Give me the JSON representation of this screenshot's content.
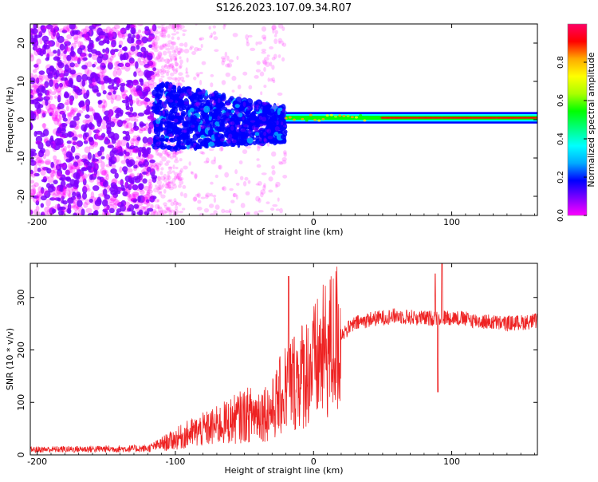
{
  "figure": {
    "title": "S126.2023.107.09.34.R07"
  },
  "chart_data": [
    {
      "type": "heatmap",
      "xlabel": "Height of straight line (km)",
      "ylabel": "Frequency (Hz)",
      "xlim": [
        -205,
        162
      ],
      "ylim": [
        -25,
        25
      ],
      "xticks": [
        -200,
        -100,
        0,
        100
      ],
      "yticks": [
        -20,
        -10,
        0,
        10,
        20
      ],
      "colorbar": {
        "label": "Normalized spectral amplitude",
        "range": [
          0,
          1
        ],
        "ticks": [
          0.0,
          0.2,
          0.4,
          0.6,
          0.8
        ],
        "tick_labels": [
          "0.0",
          "0.2",
          "0.4",
          "0.6",
          "0.8"
        ],
        "colormap": [
          "#ff00ff",
          "#7f00ff",
          "#0000ff",
          "#00aaff",
          "#00ffff",
          "#00ff7f",
          "#00ff00",
          "#aaff00",
          "#ffff00",
          "#ffaa00",
          "#ff0000",
          "#ff0066"
        ]
      },
      "features": [
        {
          "region": "scattered noise",
          "x_range": [
            -205,
            -115
          ],
          "freq_range": [
            -25,
            25
          ],
          "amplitude": 0.1
        },
        {
          "region": "noisy band",
          "x_range": [
            -115,
            -20
          ],
          "freq_range": [
            -8,
            10
          ],
          "amplitude": 0.15
        },
        {
          "region": "narrow band",
          "x_range": [
            -20,
            162
          ],
          "freq_center": 0.5,
          "freq_halfwidth": 1.5,
          "amplitude": 0.9
        }
      ],
      "grid": false
    },
    {
      "type": "line",
      "xlabel": "Height of straight line (km)",
      "ylabel": "SNR (10 * v/v)",
      "xlim": [
        -205,
        162
      ],
      "ylim": [
        0,
        365
      ],
      "xticks": [
        -200,
        -100,
        0,
        100
      ],
      "yticks": [
        0,
        100,
        200,
        300
      ],
      "color": "#ee2222",
      "grid": false,
      "envelope": [
        {
          "x": -205,
          "y": 10
        },
        {
          "x": -120,
          "y": 12
        },
        {
          "x": -105,
          "y": 25
        },
        {
          "x": -90,
          "y": 40
        },
        {
          "x": -70,
          "y": 55
        },
        {
          "x": -50,
          "y": 75
        },
        {
          "x": -30,
          "y": 85
        },
        {
          "x": -20,
          "y": 130
        },
        {
          "x": -10,
          "y": 150
        },
        {
          "x": 0,
          "y": 170
        },
        {
          "x": 10,
          "y": 200
        },
        {
          "x": 20,
          "y": 230
        },
        {
          "x": 30,
          "y": 250
        },
        {
          "x": 40,
          "y": 258
        },
        {
          "x": 60,
          "y": 265
        },
        {
          "x": 80,
          "y": 260
        },
        {
          "x": 100,
          "y": 262
        },
        {
          "x": 120,
          "y": 255
        },
        {
          "x": 140,
          "y": 250
        },
        {
          "x": 162,
          "y": 255
        }
      ],
      "spikes": [
        {
          "x": -18,
          "y": 340
        },
        {
          "x": -21,
          "y": 60
        },
        {
          "x": 88,
          "y": 345
        },
        {
          "x": 90,
          "y": 120
        },
        {
          "x": 93,
          "y": 365
        }
      ]
    }
  ]
}
